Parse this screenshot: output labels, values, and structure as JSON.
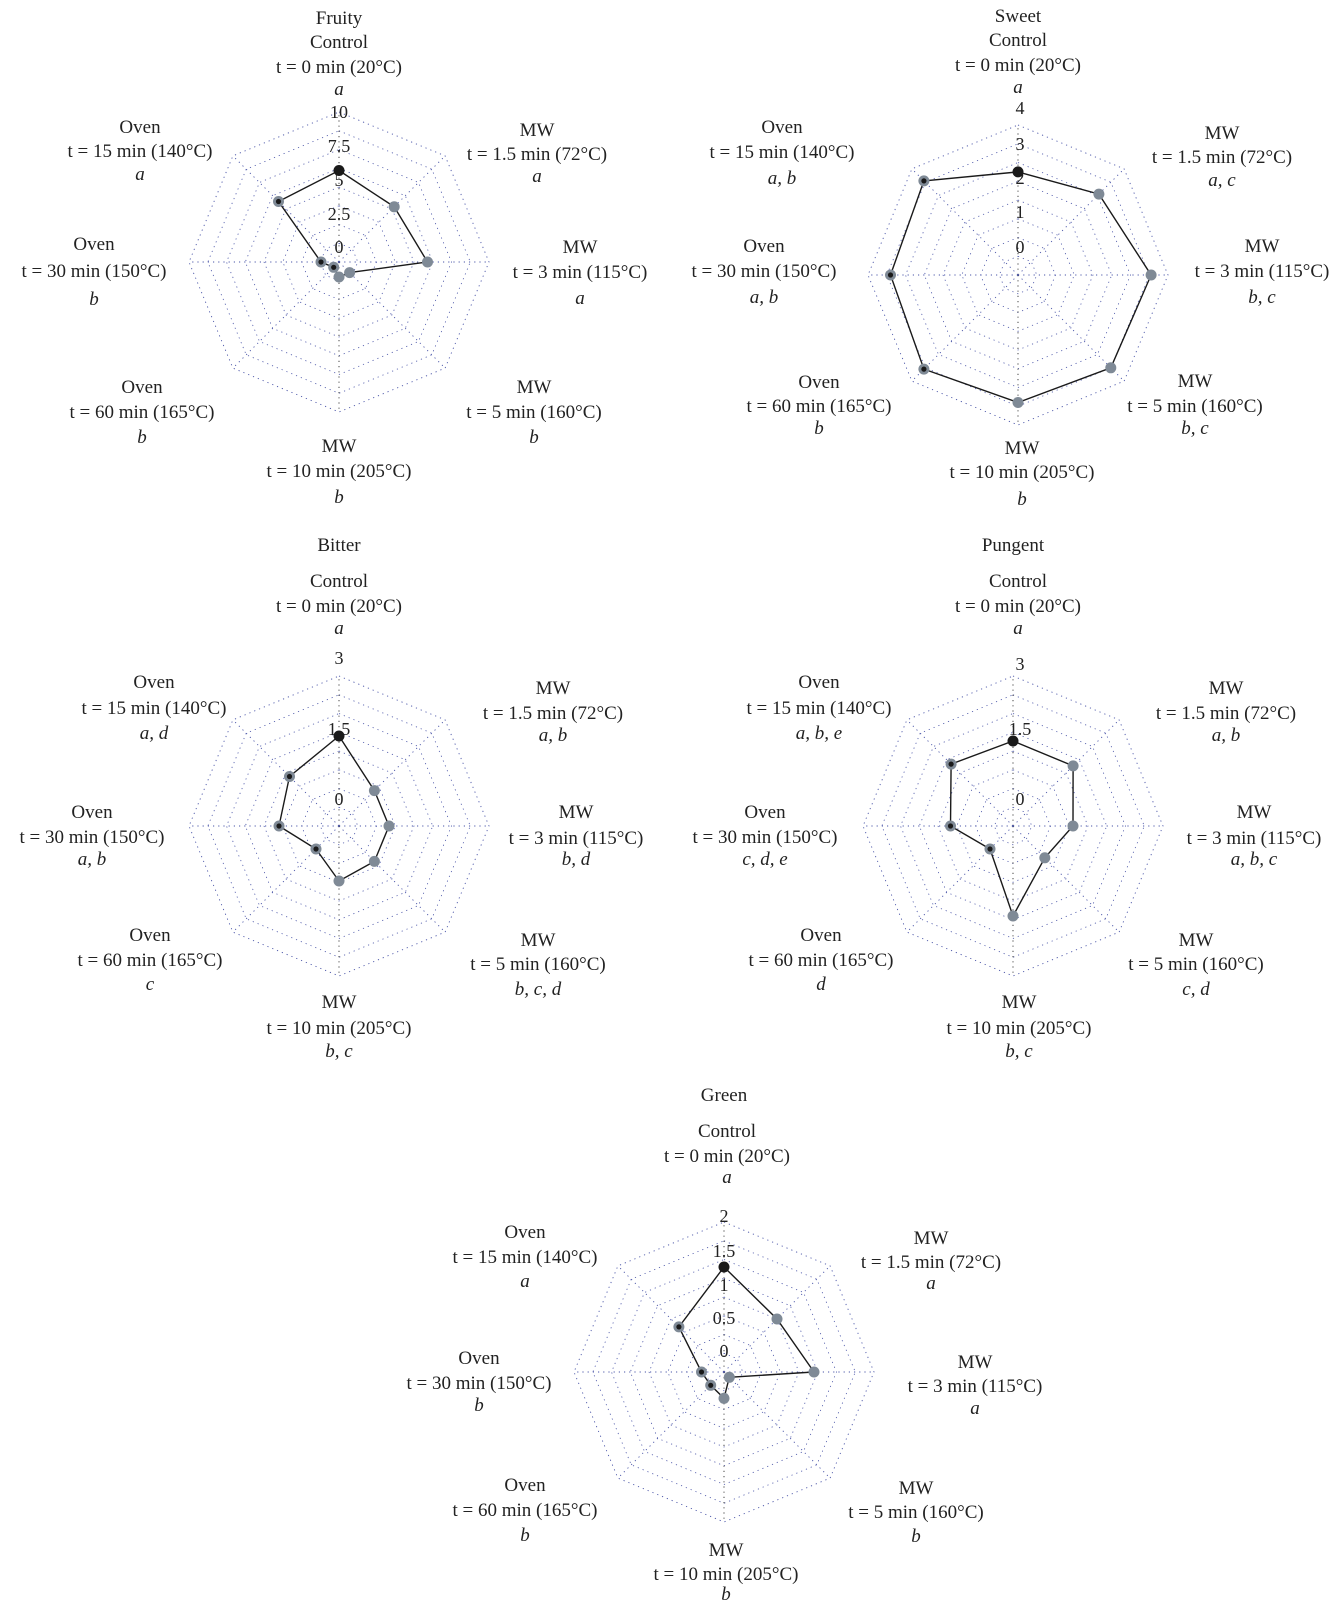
{
  "colors": {
    "line": "#1a1a1a",
    "control_marker": "#1a1a1a",
    "mw_marker": "#7f8a96",
    "oven_marker_ring": "#7f8a96",
    "oven_marker_core": "#1a1a1a",
    "grid": "#4a55a8",
    "axis": "#333333"
  },
  "chart_data": [
    {
      "type": "radar",
      "title": "Fruity",
      "rmax": 10,
      "ticks": [
        "0",
        "2.5",
        "5",
        "7.5",
        "10"
      ],
      "tick_values": [
        0,
        2.5,
        5,
        7.5,
        10
      ],
      "grid": true,
      "axes": [
        {
          "group": "Control",
          "condition": "t = 0 min (20°C)",
          "letters": "a",
          "value": 6.1,
          "marker": "control"
        },
        {
          "group": "MW",
          "condition": "t = 1.5 min (72°C)",
          "letters": "a",
          "value": 5.2,
          "marker": "mw"
        },
        {
          "group": "MW",
          "condition": "t = 3 min (115°C)",
          "letters": "a",
          "value": 5.9,
          "marker": "mw"
        },
        {
          "group": "MW",
          "condition": "t = 5 min (160°C)",
          "letters": "b",
          "value": 1.0,
          "marker": "mw"
        },
        {
          "group": "MW",
          "condition": "t = 10 min (205°C)",
          "letters": "b",
          "value": 1.0,
          "marker": "mw"
        },
        {
          "group": "Oven",
          "condition": "t = 60 min (165°C)",
          "letters": "b",
          "value": 0.5,
          "marker": "oven"
        },
        {
          "group": "Oven",
          "condition": "t = 30 min (150°C)",
          "letters": "b",
          "value": 1.2,
          "marker": "oven"
        },
        {
          "group": "Oven",
          "condition": "t = 15 min (140°C)",
          "letters": "a",
          "value": 5.7,
          "marker": "oven"
        }
      ]
    },
    {
      "type": "radar",
      "title": "Sweet",
      "rmax": 4,
      "ticks": [
        "0",
        "1",
        "2",
        "3",
        "4"
      ],
      "tick_values": [
        0,
        1,
        2,
        3,
        4
      ],
      "grid": true,
      "axes": [
        {
          "group": "Control",
          "condition": "t = 0 min (20°C)",
          "letters": "a",
          "value": 2.75,
          "marker": "control"
        },
        {
          "group": "MW",
          "condition": "t = 1.5 min (72°C)",
          "letters": "a, c",
          "value": 3.05,
          "marker": "mw"
        },
        {
          "group": "MW",
          "condition": "t = 3 min (115°C)",
          "letters": "b, c",
          "value": 3.55,
          "marker": "mw"
        },
        {
          "group": "MW",
          "condition": "t = 5 min (160°C)",
          "letters": "b, c",
          "value": 3.5,
          "marker": "mw"
        },
        {
          "group": "MW",
          "condition": "t = 10 min (205°C)",
          "letters": "b",
          "value": 3.4,
          "marker": "mw"
        },
        {
          "group": "Oven",
          "condition": "t = 60 min (165°C)",
          "letters": "b",
          "value": 3.55,
          "marker": "oven"
        },
        {
          "group": "Oven",
          "condition": "t = 30 min (150°C)",
          "letters": "a, b",
          "value": 3.4,
          "marker": "oven"
        },
        {
          "group": "Oven",
          "condition": "t = 15 min (140°C)",
          "letters": "a, b",
          "value": 3.55,
          "marker": "oven"
        }
      ]
    },
    {
      "type": "radar",
      "title": "Bitter",
      "rmax": 3,
      "ticks": [
        "0",
        "1.5",
        "3"
      ],
      "tick_values": [
        0,
        1.5,
        3
      ],
      "grid": true,
      "axes": [
        {
          "group": "Control",
          "condition": "t = 0 min (20°C)",
          "letters": "a",
          "value": 1.8,
          "marker": "control"
        },
        {
          "group": "MW",
          "condition": "t = 1.5 min (72°C)",
          "letters": "a, b",
          "value": 1.0,
          "marker": "mw"
        },
        {
          "group": "MW",
          "condition": "t = 3 min (115°C)",
          "letters": "b, d",
          "value": 1.0,
          "marker": "mw"
        },
        {
          "group": "MW",
          "condition": "t = 5 min (160°C)",
          "letters": "b, c, d",
          "value": 1.0,
          "marker": "mw"
        },
        {
          "group": "MW",
          "condition": "t = 10 min (205°C)",
          "letters": "b, c",
          "value": 1.1,
          "marker": "mw"
        },
        {
          "group": "Oven",
          "condition": "t = 60 min (165°C)",
          "letters": "c",
          "value": 0.65,
          "marker": "oven"
        },
        {
          "group": "Oven",
          "condition": "t = 30 min (150°C)",
          "letters": "a, b",
          "value": 1.2,
          "marker": "oven"
        },
        {
          "group": "Oven",
          "condition": "t = 15 min (140°C)",
          "letters": "a, d",
          "value": 1.4,
          "marker": "oven"
        }
      ]
    },
    {
      "type": "radar",
      "title": "Pungent",
      "rmax": 3,
      "ticks": [
        "0",
        "1.5",
        "3"
      ],
      "tick_values": [
        0,
        1.5,
        3
      ],
      "grid": true,
      "axes": [
        {
          "group": "Control",
          "condition": "t = 0 min (20°C)",
          "letters": "a",
          "value": 1.7,
          "marker": "control"
        },
        {
          "group": "MW",
          "condition": "t = 1.5 min (72°C)",
          "letters": "a, b",
          "value": 1.7,
          "marker": "mw"
        },
        {
          "group": "MW",
          "condition": "t = 3 min (115°C)",
          "letters": "a, b, c",
          "value": 1.2,
          "marker": "mw"
        },
        {
          "group": "MW",
          "condition": "t = 5 min (160°C)",
          "letters": "c, d",
          "value": 0.9,
          "marker": "mw"
        },
        {
          "group": "MW",
          "condition": "t = 10 min (205°C)",
          "letters": "b, c",
          "value": 1.8,
          "marker": "mw"
        },
        {
          "group": "Oven",
          "condition": "t = 60 min (165°C)",
          "letters": "d",
          "value": 0.65,
          "marker": "oven"
        },
        {
          "group": "Oven",
          "condition": "t = 30 min (150°C)",
          "letters": "c, d, e",
          "value": 1.25,
          "marker": "oven"
        },
        {
          "group": "Oven",
          "condition": "t = 15 min (140°C)",
          "letters": "a, b, e",
          "value": 1.75,
          "marker": "oven"
        }
      ]
    },
    {
      "type": "radar",
      "title": "Green",
      "rmax": 2,
      "ticks": [
        "0",
        "0.5",
        "1",
        "1.5",
        "2"
      ],
      "tick_values": [
        0,
        0.5,
        1,
        1.5,
        2
      ],
      "grid": true,
      "axes": [
        {
          "group": "Control",
          "condition": "t = 0 min (20°C)",
          "letters": "a",
          "value": 1.4,
          "marker": "control"
        },
        {
          "group": "MW",
          "condition": "t = 1.5 min (72°C)",
          "letters": "a",
          "value": 1.0,
          "marker": "mw"
        },
        {
          "group": "MW",
          "condition": "t = 3 min (115°C)",
          "letters": "a",
          "value": 1.2,
          "marker": "mw"
        },
        {
          "group": "MW",
          "condition": "t = 5 min (160°C)",
          "letters": "b",
          "value": 0.1,
          "marker": "mw"
        },
        {
          "group": "MW",
          "condition": "t = 10 min (205°C)",
          "letters": "b",
          "value": 0.35,
          "marker": "mw"
        },
        {
          "group": "Oven",
          "condition": "t = 60 min (165°C)",
          "letters": "b",
          "value": 0.25,
          "marker": "oven"
        },
        {
          "group": "Oven",
          "condition": "t = 30 min (150°C)",
          "letters": "b",
          "value": 0.3,
          "marker": "oven"
        },
        {
          "group": "Oven",
          "condition": "t = 15 min (140°C)",
          "letters": "a",
          "value": 0.85,
          "marker": "oven"
        }
      ]
    }
  ]
}
